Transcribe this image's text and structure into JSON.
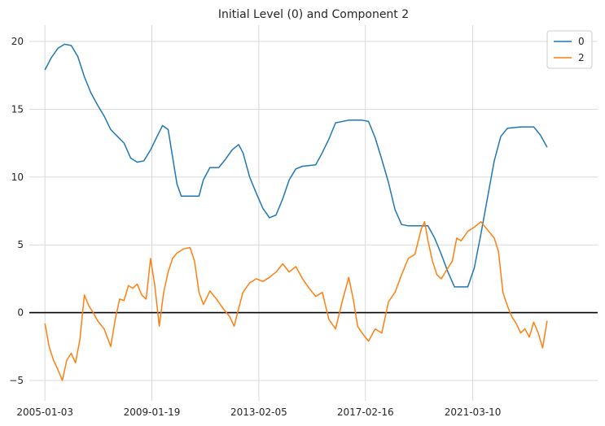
{
  "chart_data": {
    "type": "line",
    "title": "Initial Level (0) and Component 2",
    "xlabel": "",
    "ylabel": "",
    "x_ticks": [
      "2005-01-03",
      "2009-01-19",
      "2013-02-05",
      "2017-02-16",
      "2021-03-10"
    ],
    "x_range": [
      "2004-06-01",
      "2025-11-30"
    ],
    "y_ticks": [
      -5,
      0,
      5,
      10,
      15,
      20
    ],
    "ylim": [
      -6.5,
      21.2
    ],
    "grid": true,
    "legend_position": "top-right",
    "zero_line": {
      "y": 0,
      "color": "#000000"
    },
    "series": [
      {
        "name": "0",
        "color": "#1f77b4",
        "points": [
          [
            "2005-01-03",
            17.9
          ],
          [
            "2005-04-01",
            18.8
          ],
          [
            "2005-07-01",
            19.5
          ],
          [
            "2005-10-01",
            19.8
          ],
          [
            "2006-01-01",
            19.7
          ],
          [
            "2006-04-01",
            18.9
          ],
          [
            "2006-07-01",
            17.4
          ],
          [
            "2006-10-01",
            16.2
          ],
          [
            "2007-01-01",
            15.3
          ],
          [
            "2007-04-01",
            14.5
          ],
          [
            "2007-07-01",
            13.5
          ],
          [
            "2007-10-01",
            13.0
          ],
          [
            "2008-01-01",
            12.5
          ],
          [
            "2008-04-01",
            11.4
          ],
          [
            "2008-07-01",
            11.1
          ],
          [
            "2008-10-01",
            11.2
          ],
          [
            "2009-01-01",
            12.0
          ],
          [
            "2009-04-01",
            13.0
          ],
          [
            "2009-06-15",
            13.8
          ],
          [
            "2009-09-01",
            13.5
          ],
          [
            "2009-11-01",
            11.5
          ],
          [
            "2010-01-01",
            9.5
          ],
          [
            "2010-03-01",
            8.6
          ],
          [
            "2010-07-01",
            8.6
          ],
          [
            "2010-11-01",
            8.6
          ],
          [
            "2011-01-01",
            9.8
          ],
          [
            "2011-04-01",
            10.7
          ],
          [
            "2011-08-01",
            10.7
          ],
          [
            "2011-11-01",
            11.3
          ],
          [
            "2012-02-01",
            12.0
          ],
          [
            "2012-05-01",
            12.4
          ],
          [
            "2012-07-01",
            11.8
          ],
          [
            "2012-10-01",
            10.0
          ],
          [
            "2013-01-01",
            8.8
          ],
          [
            "2013-04-01",
            7.7
          ],
          [
            "2013-07-01",
            7.0
          ],
          [
            "2013-10-01",
            7.2
          ],
          [
            "2014-01-01",
            8.4
          ],
          [
            "2014-04-01",
            9.8
          ],
          [
            "2014-07-01",
            10.6
          ],
          [
            "2014-10-01",
            10.8
          ],
          [
            "2015-04-01",
            10.9
          ],
          [
            "2015-07-01",
            11.8
          ],
          [
            "2015-10-01",
            12.8
          ],
          [
            "2016-01-01",
            14.0
          ],
          [
            "2016-07-01",
            14.2
          ],
          [
            "2017-01-01",
            14.2
          ],
          [
            "2017-04-01",
            14.1
          ],
          [
            "2017-07-01",
            12.9
          ],
          [
            "2017-10-01",
            11.3
          ],
          [
            "2018-01-01",
            9.6
          ],
          [
            "2018-04-01",
            7.6
          ],
          [
            "2018-07-01",
            6.5
          ],
          [
            "2018-10-01",
            6.4
          ],
          [
            "2019-04-01",
            6.4
          ],
          [
            "2019-07-01",
            6.4
          ],
          [
            "2019-10-01",
            5.5
          ],
          [
            "2020-01-01",
            4.3
          ],
          [
            "2020-04-01",
            3.0
          ],
          [
            "2020-07-01",
            1.9
          ],
          [
            "2021-01-01",
            1.9
          ],
          [
            "2021-04-01",
            3.3
          ],
          [
            "2021-07-01",
            5.8
          ],
          [
            "2021-10-01",
            8.5
          ],
          [
            "2022-01-01",
            11.2
          ],
          [
            "2022-04-01",
            13.0
          ],
          [
            "2022-07-01",
            13.6
          ],
          [
            "2023-01-01",
            13.7
          ],
          [
            "2023-07-01",
            13.7
          ],
          [
            "2023-10-01",
            13.1
          ],
          [
            "2024-01-01",
            12.2
          ]
        ]
      },
      {
        "name": "2",
        "color": "#ff7f0e",
        "points": [
          [
            "2005-01-03",
            -0.8
          ],
          [
            "2005-03-01",
            -2.5
          ],
          [
            "2005-05-01",
            -3.5
          ],
          [
            "2005-07-01",
            -4.2
          ],
          [
            "2005-09-01",
            -5.0
          ],
          [
            "2005-11-01",
            -3.5
          ],
          [
            "2006-01-01",
            -3.0
          ],
          [
            "2006-03-01",
            -3.7
          ],
          [
            "2006-05-01",
            -2.0
          ],
          [
            "2006-07-01",
            1.3
          ],
          [
            "2006-09-01",
            0.5
          ],
          [
            "2006-11-01",
            0.0
          ],
          [
            "2007-01-01",
            -0.6
          ],
          [
            "2007-04-01",
            -1.2
          ],
          [
            "2007-07-01",
            -2.5
          ],
          [
            "2007-09-01",
            -0.5
          ],
          [
            "2007-11-01",
            1.0
          ],
          [
            "2008-01-01",
            0.9
          ],
          [
            "2008-03-01",
            2.0
          ],
          [
            "2008-05-01",
            1.8
          ],
          [
            "2008-07-01",
            2.1
          ],
          [
            "2008-09-01",
            1.3
          ],
          [
            "2008-11-01",
            1.0
          ],
          [
            "2009-01-01",
            4.0
          ],
          [
            "2009-03-01",
            2.0
          ],
          [
            "2009-05-01",
            -1.0
          ],
          [
            "2009-07-01",
            1.5
          ],
          [
            "2009-09-01",
            3.0
          ],
          [
            "2009-11-01",
            4.0
          ],
          [
            "2010-01-01",
            4.4
          ],
          [
            "2010-04-01",
            4.7
          ],
          [
            "2010-07-01",
            4.8
          ],
          [
            "2010-09-01",
            3.8
          ],
          [
            "2010-11-01",
            1.5
          ],
          [
            "2011-01-01",
            0.6
          ],
          [
            "2011-04-01",
            1.6
          ],
          [
            "2011-07-01",
            1.0
          ],
          [
            "2011-10-01",
            0.3
          ],
          [
            "2012-01-01",
            -0.3
          ],
          [
            "2012-03-01",
            -1.0
          ],
          [
            "2012-05-01",
            0.3
          ],
          [
            "2012-07-01",
            1.5
          ],
          [
            "2012-10-01",
            2.2
          ],
          [
            "2013-01-01",
            2.5
          ],
          [
            "2013-04-01",
            2.3
          ],
          [
            "2013-07-01",
            2.6
          ],
          [
            "2013-10-01",
            3.0
          ],
          [
            "2014-01-01",
            3.6
          ],
          [
            "2014-04-01",
            3.0
          ],
          [
            "2014-07-01",
            3.4
          ],
          [
            "2014-10-01",
            2.5
          ],
          [
            "2015-01-01",
            1.8
          ],
          [
            "2015-04-01",
            1.2
          ],
          [
            "2015-07-01",
            1.5
          ],
          [
            "2015-10-01",
            -0.5
          ],
          [
            "2016-01-01",
            -1.2
          ],
          [
            "2016-04-01",
            0.8
          ],
          [
            "2016-07-01",
            2.6
          ],
          [
            "2016-09-01",
            1.0
          ],
          [
            "2016-11-01",
            -1.0
          ],
          [
            "2017-01-01",
            -1.5
          ],
          [
            "2017-04-01",
            -2.1
          ],
          [
            "2017-07-01",
            -1.2
          ],
          [
            "2017-10-01",
            -1.5
          ],
          [
            "2018-01-01",
            0.8
          ],
          [
            "2018-04-01",
            1.5
          ],
          [
            "2018-07-01",
            2.8
          ],
          [
            "2018-10-01",
            4.0
          ],
          [
            "2019-01-01",
            4.3
          ],
          [
            "2019-04-01",
            6.2
          ],
          [
            "2019-05-15",
            6.7
          ],
          [
            "2019-07-01",
            5.3
          ],
          [
            "2019-09-01",
            3.8
          ],
          [
            "2019-11-01",
            2.8
          ],
          [
            "2020-01-01",
            2.5
          ],
          [
            "2020-04-01",
            3.3
          ],
          [
            "2020-06-01",
            3.8
          ],
          [
            "2020-08-01",
            5.5
          ],
          [
            "2020-10-01",
            5.3
          ],
          [
            "2021-01-01",
            6.0
          ],
          [
            "2021-04-01",
            6.3
          ],
          [
            "2021-07-01",
            6.7
          ],
          [
            "2021-10-01",
            6.1
          ],
          [
            "2022-01-01",
            5.5
          ],
          [
            "2022-03-01",
            4.5
          ],
          [
            "2022-05-01",
            1.5
          ],
          [
            "2022-07-01",
            0.5
          ],
          [
            "2022-09-01",
            -0.3
          ],
          [
            "2022-11-01",
            -0.8
          ],
          [
            "2023-01-01",
            -1.5
          ],
          [
            "2023-03-01",
            -1.2
          ],
          [
            "2023-05-01",
            -1.8
          ],
          [
            "2023-07-01",
            -0.7
          ],
          [
            "2023-09-01",
            -1.5
          ],
          [
            "2023-11-01",
            -2.6
          ],
          [
            "2024-01-01",
            -0.6
          ]
        ]
      }
    ]
  }
}
